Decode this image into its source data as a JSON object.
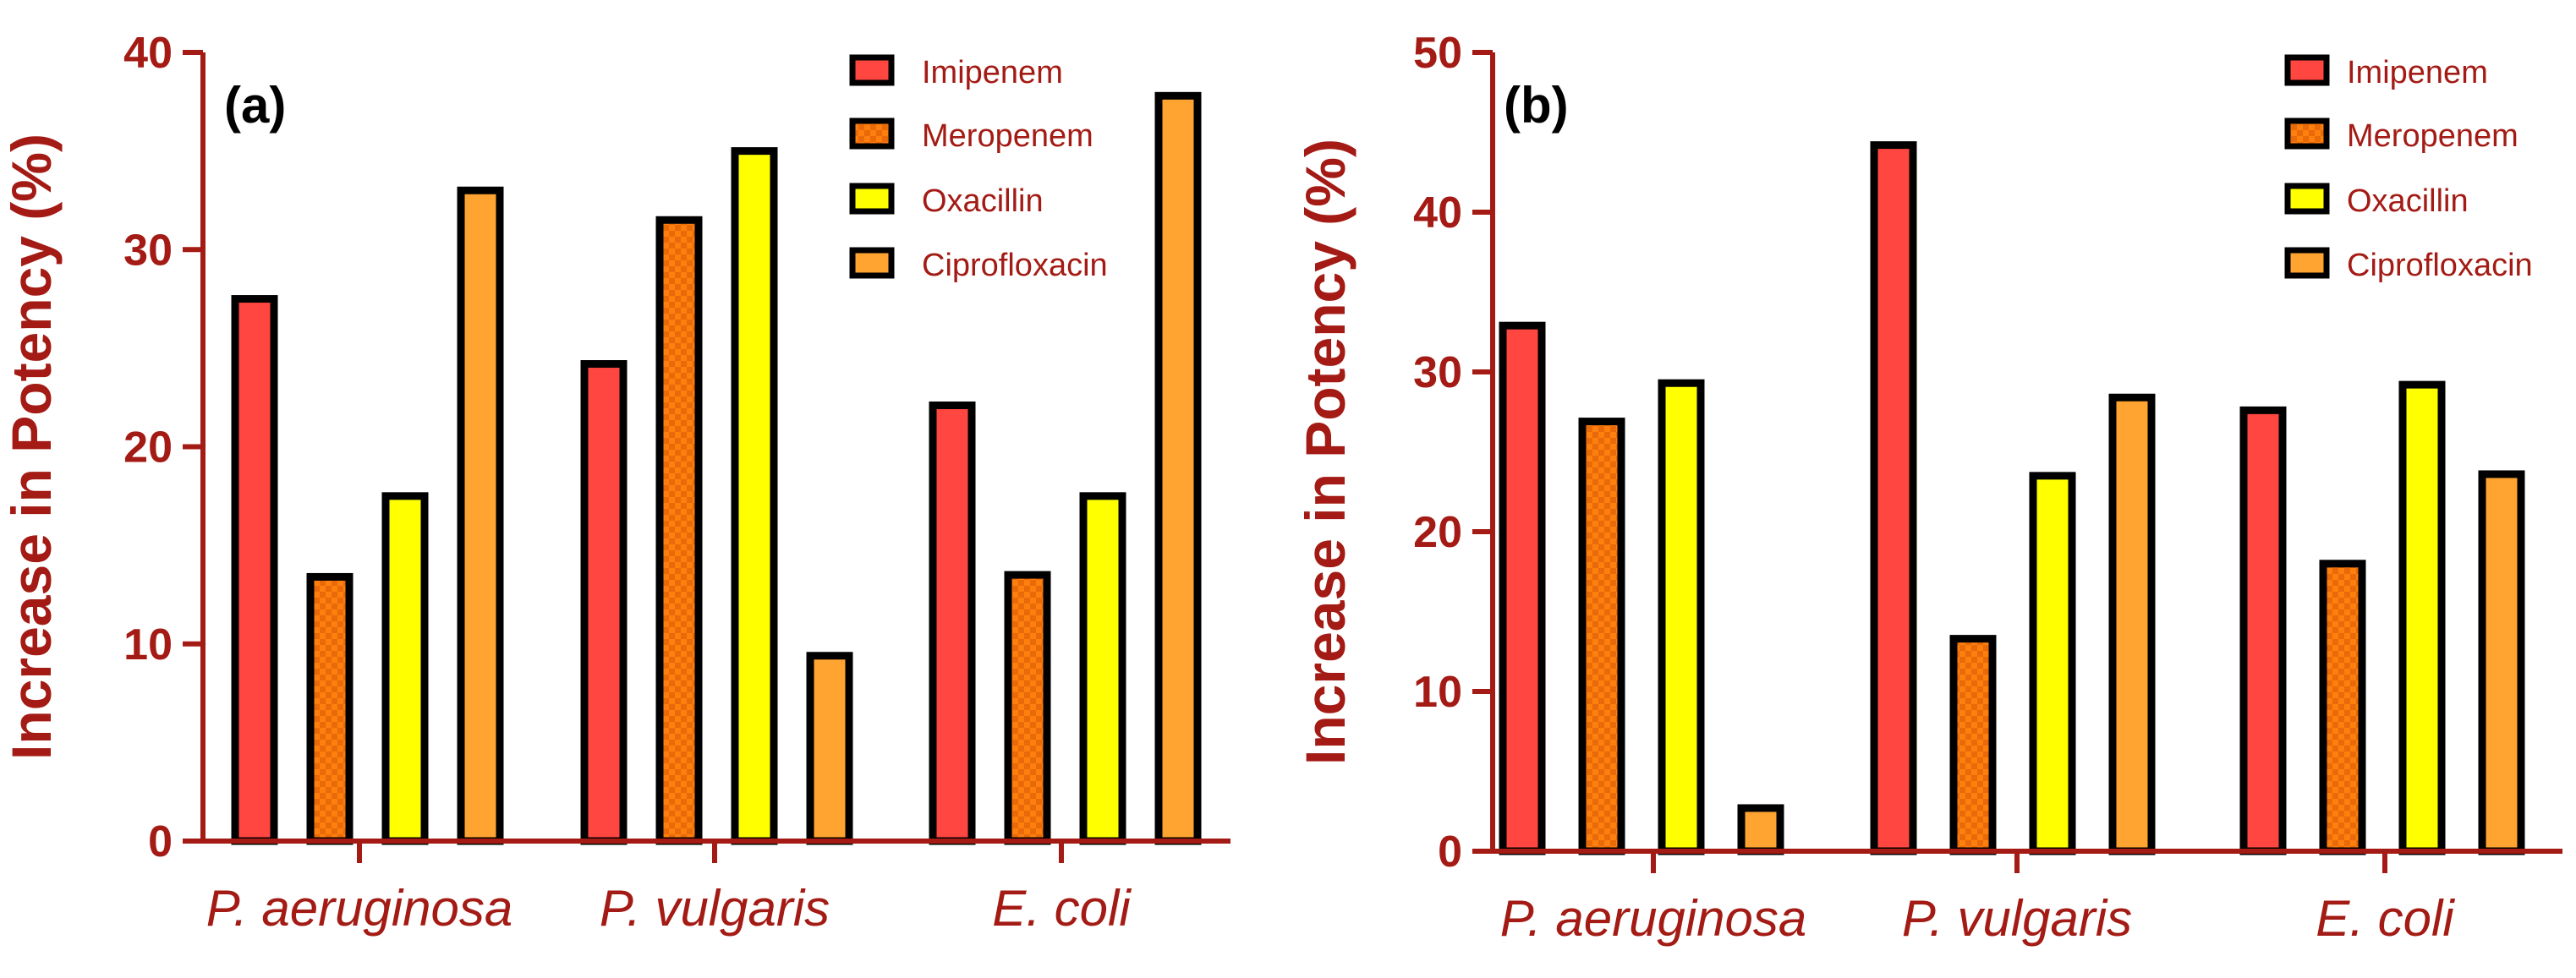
{
  "colors": {
    "axis": "#A31B14",
    "text": "#A31B14",
    "bar_outline": "#000000",
    "imipenem": "#FF4640",
    "meropenem": "#FF7F0E",
    "meropenem_check": "#E86A08",
    "oxacillin": "#FFFF00",
    "ciprofloxacin": "#FFA431"
  },
  "chart_data": [
    {
      "type": "bar",
      "panel_label": "(a)",
      "title": "",
      "xlabel": "",
      "ylabel": "Increase in Potency  (%)",
      "categories": [
        "P. aeruginosa",
        "P. vulgaris",
        "E. coli"
      ],
      "ylim": [
        0,
        40
      ],
      "yticks": [
        "0",
        "10",
        "20",
        "30",
        "40"
      ],
      "legend_position": "top-right",
      "series": [
        {
          "name": "Imipenem",
          "values": [
            27.5,
            24.2,
            22.1
          ]
        },
        {
          "name": "Meropenem",
          "values": [
            13.4,
            31.5,
            13.5
          ]
        },
        {
          "name": "Oxacillin",
          "values": [
            17.5,
            35.0,
            17.5
          ]
        },
        {
          "name": "Ciprofloxacin",
          "values": [
            33.0,
            9.4,
            37.8
          ]
        }
      ]
    },
    {
      "type": "bar",
      "panel_label": "(b)",
      "title": "",
      "xlabel": "",
      "ylabel": "Increase in Potency  (%)",
      "categories": [
        "P. aeruginosa",
        "P. vulgaris",
        "E. coli"
      ],
      "ylim": [
        0,
        50
      ],
      "yticks": [
        "0",
        "10",
        "20",
        "30",
        "40",
        "50"
      ],
      "legend_position": "top-right",
      "series": [
        {
          "name": "Imipenem",
          "values": [
            32.9,
            44.2,
            27.6
          ]
        },
        {
          "name": "Meropenem",
          "values": [
            26.9,
            13.3,
            18.0
          ]
        },
        {
          "name": "Oxacillin",
          "values": [
            29.3,
            23.5,
            29.2
          ]
        },
        {
          "name": "Ciprofloxacin",
          "values": [
            2.7,
            28.4,
            23.6
          ]
        }
      ]
    }
  ]
}
